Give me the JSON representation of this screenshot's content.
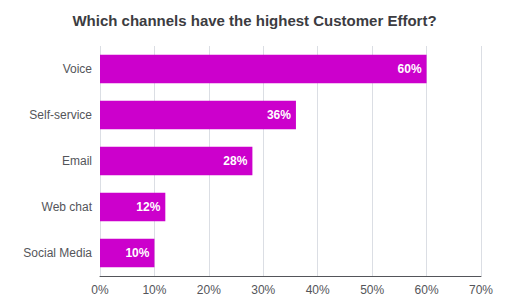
{
  "chart_data": {
    "type": "bar",
    "orientation": "horizontal",
    "title": "Which channels have the highest Customer Effort?",
    "categories": [
      "Social Media",
      "Web chat",
      "Email",
      "Self-service",
      "Voice"
    ],
    "values": [
      10,
      12,
      28,
      36,
      60
    ],
    "value_labels": [
      "10%",
      "12%",
      "28%",
      "36%",
      "60%"
    ],
    "data_labels": true,
    "color": "#CC00CC",
    "xlim": [
      0,
      70
    ],
    "xticks": [
      {
        "value": 0,
        "label": "0%"
      },
      {
        "value": 10,
        "label": "10%"
      },
      {
        "value": 20,
        "label": "20%"
      },
      {
        "value": 30,
        "label": "30%"
      },
      {
        "value": 40,
        "label": "40%"
      },
      {
        "value": 50,
        "label": "50%"
      },
      {
        "value": 60,
        "label": "60%"
      },
      {
        "value": 70,
        "label": "70%"
      }
    ],
    "grid": true
  }
}
